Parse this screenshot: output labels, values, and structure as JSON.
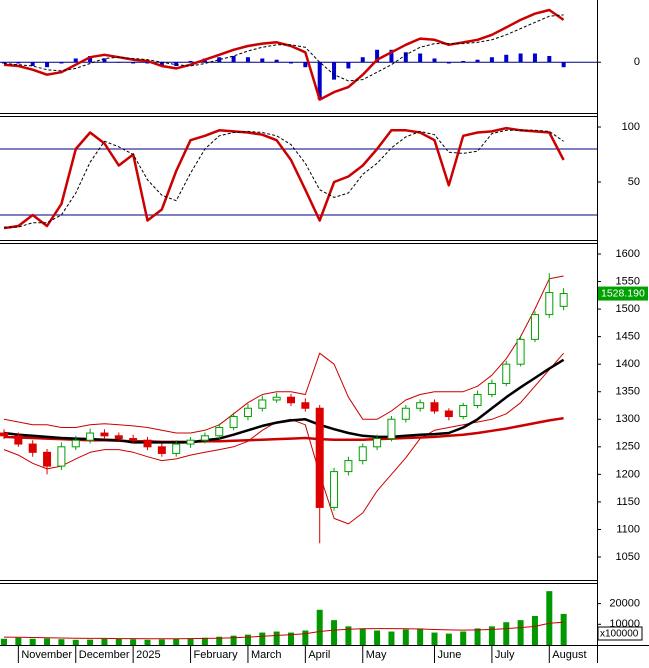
{
  "chart_data": [
    {
      "type": "macd",
      "ylim": [
        -40,
        50
      ],
      "yticks": [
        0
      ],
      "zero_line_color": "#000080",
      "series": [
        {
          "kind": "bar",
          "color": "#0000cc",
          "values": [
            -1,
            -1,
            -3,
            -4,
            -1,
            3,
            5,
            3,
            0,
            -1,
            -1,
            -3,
            -3,
            1,
            3,
            4,
            5,
            4,
            3,
            2,
            -1,
            -4,
            -30,
            -14,
            -5,
            4,
            10,
            10,
            8,
            7,
            3,
            -1,
            1,
            2,
            4,
            6,
            7,
            7,
            5,
            -4
          ]
        },
        {
          "kind": "line",
          "color": "#cc0000",
          "width": 2.5,
          "values": [
            -2,
            -3,
            -6,
            -10,
            -8,
            -2,
            4,
            6,
            4,
            2,
            1,
            -3,
            -5,
            -2,
            2,
            6,
            10,
            13,
            15,
            16,
            13,
            8,
            -30,
            -24,
            -20,
            -10,
            2,
            8,
            14,
            19,
            18,
            14,
            16,
            18,
            22,
            28,
            34,
            39,
            42,
            34
          ]
        },
        {
          "kind": "line",
          "color": "#000000",
          "dashed": true,
          "width": 1,
          "values": [
            -1,
            -2,
            -3,
            -6,
            -7,
            -5,
            -1,
            3,
            4,
            3,
            2,
            0,
            -2,
            -3,
            -1,
            2,
            5,
            9,
            12,
            14,
            14,
            12,
            0,
            -10,
            -15,
            -14,
            -8,
            -2,
            6,
            12,
            15,
            15,
            15,
            16,
            18,
            22,
            27,
            32,
            37,
            38
          ]
        }
      ]
    },
    {
      "type": "stochastic",
      "ylim": [
        0,
        100
      ],
      "yticks": [
        100,
        50
      ],
      "levels": [
        80,
        20
      ],
      "level_color": "#000080",
      "series": [
        {
          "kind": "line",
          "color": "#cc0000",
          "width": 2.5,
          "values": [
            8,
            10,
            20,
            10,
            30,
            80,
            95,
            85,
            65,
            75,
            15,
            25,
            60,
            88,
            92,
            97,
            96,
            95,
            93,
            88,
            70,
            43,
            15,
            50,
            55,
            65,
            80,
            97,
            97,
            95,
            88,
            47,
            92,
            95,
            96,
            99,
            97,
            96,
            95,
            70
          ]
        },
        {
          "kind": "line",
          "color": "#000000",
          "dashed": true,
          "width": 1,
          "values": [
            9,
            9,
            13,
            13,
            20,
            40,
            68,
            87,
            82,
            75,
            52,
            38,
            33,
            58,
            80,
            92,
            95,
            96,
            95,
            92,
            84,
            67,
            43,
            36,
            40,
            57,
            67,
            81,
            91,
            96,
            93,
            77,
            76,
            78,
            94,
            97,
            97,
            97,
            96,
            87
          ]
        }
      ]
    },
    {
      "type": "candlestick",
      "ylim": [
        1050,
        1600
      ],
      "yticks": [
        1600,
        1550,
        1500,
        1450,
        1400,
        1350,
        1300,
        1250,
        1200,
        1150,
        1100,
        1050
      ],
      "up_color": "#00a000",
      "down_color": "#dd0000",
      "last_label_color": "#00a000",
      "open": [
        1275,
        1270,
        1255,
        1240,
        1215,
        1250,
        1262,
        1275,
        1270,
        1265,
        1262,
        1250,
        1238,
        1255,
        1262,
        1270,
        1285,
        1305,
        1320,
        1335,
        1340,
        1330,
        1320,
        1140,
        1205,
        1225,
        1250,
        1265,
        1300,
        1320,
        1330,
        1315,
        1305,
        1325,
        1345,
        1365,
        1400,
        1445,
        1490,
        1505
      ],
      "high": [
        1282,
        1276,
        1262,
        1246,
        1258,
        1270,
        1283,
        1282,
        1276,
        1272,
        1268,
        1256,
        1262,
        1268,
        1276,
        1292,
        1312,
        1328,
        1343,
        1348,
        1346,
        1338,
        1326,
        1212,
        1232,
        1256,
        1272,
        1306,
        1326,
        1336,
        1336,
        1320,
        1330,
        1352,
        1372,
        1406,
        1452,
        1496,
        1565,
        1538
      ],
      "low": [
        1264,
        1250,
        1232,
        1200,
        1208,
        1244,
        1256,
        1264,
        1260,
        1256,
        1244,
        1232,
        1232,
        1248,
        1256,
        1264,
        1280,
        1298,
        1314,
        1330,
        1324,
        1314,
        1075,
        1134,
        1198,
        1218,
        1244,
        1260,
        1294,
        1314,
        1310,
        1298,
        1300,
        1320,
        1340,
        1360,
        1396,
        1440,
        1484,
        1498
      ],
      "close": [
        1270,
        1255,
        1240,
        1215,
        1250,
        1262,
        1275,
        1270,
        1265,
        1262,
        1250,
        1238,
        1255,
        1262,
        1270,
        1285,
        1305,
        1320,
        1335,
        1340,
        1330,
        1320,
        1140,
        1205,
        1225,
        1250,
        1265,
        1300,
        1320,
        1330,
        1315,
        1305,
        1325,
        1345,
        1365,
        1400,
        1445,
        1490,
        1530,
        1528.19
      ],
      "last_value_label": "1528.190",
      "series": [
        {
          "kind": "line",
          "color": "#cc0000",
          "width": 1,
          "values": [
            1300,
            1295,
            1290,
            1290,
            1285,
            1285,
            1290,
            1292,
            1290,
            1288,
            1285,
            1280,
            1275,
            1275,
            1280,
            1290,
            1310,
            1330,
            1345,
            1350,
            1350,
            1345,
            1420,
            1400,
            1340,
            1300,
            1300,
            1315,
            1335,
            1345,
            1350,
            1350,
            1350,
            1360,
            1380,
            1410,
            1450,
            1500,
            1555,
            1560
          ]
        },
        {
          "kind": "line",
          "color": "#cc0000",
          "width": 1,
          "values": [
            1245,
            1235,
            1220,
            1210,
            1215,
            1228,
            1240,
            1245,
            1245,
            1240,
            1232,
            1225,
            1228,
            1235,
            1240,
            1245,
            1250,
            1260,
            1280,
            1295,
            1300,
            1290,
            1200,
            1120,
            1110,
            1130,
            1170,
            1200,
            1230,
            1265,
            1280,
            1285,
            1290,
            1295,
            1300,
            1310,
            1330,
            1360,
            1390,
            1420
          ]
        },
        {
          "kind": "line",
          "color": "#cc0000",
          "width": 2.5,
          "values": [
            1268,
            1267,
            1266,
            1265,
            1264,
            1263,
            1262,
            1262,
            1261,
            1260,
            1260,
            1259,
            1259,
            1259,
            1260,
            1260,
            1261,
            1262,
            1263,
            1264,
            1265,
            1266,
            1264,
            1263,
            1263,
            1263,
            1264,
            1265,
            1266,
            1267,
            1268,
            1270,
            1272,
            1275,
            1279,
            1283,
            1288,
            1293,
            1298,
            1302
          ]
        },
        {
          "kind": "line",
          "color": "#000000",
          "width": 2.5,
          "values": [
            1275,
            1272,
            1270,
            1268,
            1266,
            1265,
            1264,
            1263,
            1262,
            1258,
            1258,
            1258,
            1258,
            1258,
            1262,
            1265,
            1272,
            1280,
            1288,
            1294,
            1298,
            1300,
            1290,
            1282,
            1275,
            1270,
            1268,
            1268,
            1270,
            1272,
            1273,
            1275,
            1285,
            1300,
            1320,
            1340,
            1358,
            1375,
            1392,
            1408
          ]
        }
      ]
    },
    {
      "type": "bar",
      "color": "#009900",
      "ylim": [
        0,
        28000
      ],
      "yticks": [
        20000,
        10000
      ],
      "unit_label": "x100000",
      "categories": [
        null,
        "November",
        null,
        null,
        null,
        "December",
        null,
        null,
        null,
        "2025",
        null,
        null,
        null,
        "February",
        null,
        null,
        null,
        "March",
        null,
        null,
        null,
        "April",
        null,
        null,
        null,
        "May",
        null,
        null,
        null,
        null,
        "June",
        null,
        null,
        null,
        "July",
        null,
        null,
        null,
        "August",
        null
      ],
      "values": [
        3000,
        3500,
        3000,
        3200,
        2800,
        2500,
        2600,
        3000,
        3000,
        2800,
        2500,
        2700,
        3000,
        3200,
        3500,
        4000,
        4500,
        5000,
        6000,
        6500,
        6000,
        7000,
        17000,
        12000,
        9000,
        8000,
        7000,
        6500,
        7500,
        8000,
        6000,
        5500,
        6500,
        8000,
        9000,
        11000,
        12000,
        14000,
        26000,
        15000
      ],
      "series": [
        {
          "kind": "line",
          "color": "#cc0000",
          "width": 1,
          "values": [
            3800,
            3700,
            3600,
            3500,
            3400,
            3300,
            3200,
            3200,
            3100,
            3100,
            3000,
            3000,
            3000,
            3100,
            3200,
            3300,
            3500,
            3800,
            4200,
            4600,
            5000,
            5400,
            6500,
            7200,
            7600,
            7800,
            7900,
            7900,
            7800,
            7700,
            7500,
            7300,
            7200,
            7300,
            7500,
            7900,
            8400,
            9000,
            10500,
            11000
          ]
        }
      ]
    }
  ]
}
